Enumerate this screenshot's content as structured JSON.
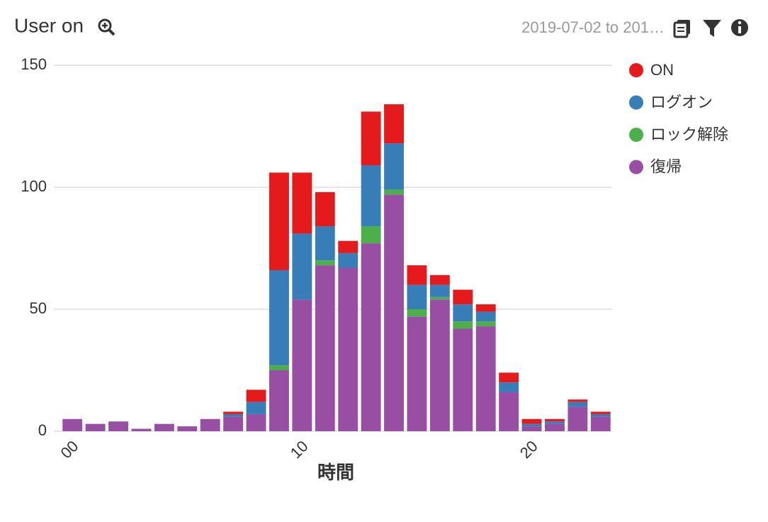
{
  "header": {
    "title": "User on",
    "date_range": "2019-07-02 to 201…"
  },
  "chart_data": {
    "type": "bar",
    "stacked": true,
    "x_label": "時間",
    "categories": [
      "00",
      null,
      null,
      null,
      null,
      null,
      null,
      null,
      null,
      null,
      "10",
      null,
      null,
      null,
      null,
      null,
      null,
      null,
      null,
      null,
      "20",
      null,
      null,
      null
    ],
    "series": [
      {
        "name": "ON",
        "color": "#e41a1c",
        "values": [
          0,
          0,
          0,
          0,
          0,
          0,
          0,
          1,
          5,
          40,
          25,
          14,
          5,
          22,
          16,
          8,
          4,
          6,
          3,
          4,
          2,
          1,
          1,
          1
        ]
      },
      {
        "name": "ログオン",
        "color": "#377eb8",
        "values": [
          0,
          0,
          0,
          0,
          0,
          0,
          0,
          1,
          5,
          39,
          27,
          14,
          6,
          25,
          19,
          10,
          5,
          7,
          4,
          4,
          1,
          1,
          2,
          1
        ]
      },
      {
        "name": "ロック解除",
        "color": "#4daf4a",
        "values": [
          0,
          0,
          0,
          0,
          0,
          0,
          0,
          0,
          0,
          2,
          0,
          2,
          0,
          7,
          2,
          3,
          1,
          3,
          2,
          0,
          0,
          0,
          0,
          0
        ]
      },
      {
        "name": "復帰",
        "color": "#984ea3",
        "values": [
          5,
          3,
          4,
          1,
          3,
          2,
          5,
          6,
          7,
          25,
          54,
          68,
          67,
          77,
          97,
          47,
          54,
          42,
          43,
          16,
          2,
          3,
          10,
          6
        ]
      }
    ],
    "ylim": [
      0,
      150
    ],
    "yticks": [
      0,
      50,
      100,
      150
    ],
    "grid": true,
    "legend": "right"
  }
}
